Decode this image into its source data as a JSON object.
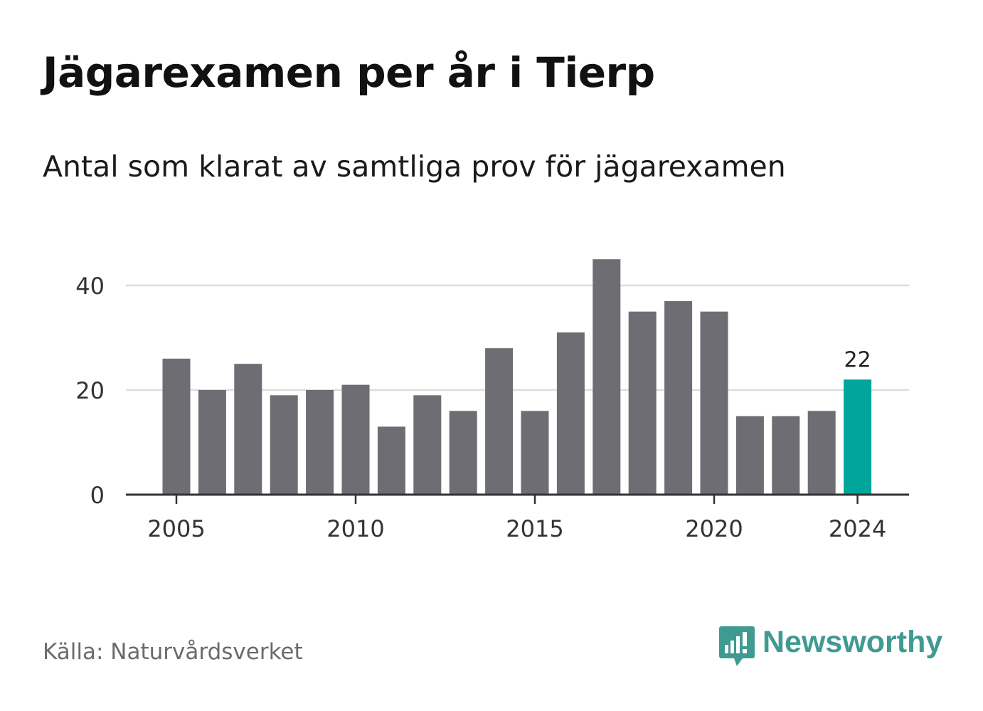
{
  "title": "Jägarexamen per år i Tierp",
  "subtitle": "Antal som klarat av samtliga prov för jägarexamen",
  "source": "Källa: Naturvårdsverket",
  "brand": {
    "name": "Newsworthy",
    "color": "#3f9a92",
    "icon": "bar-chart-speech-bubble-icon"
  },
  "colors": {
    "bar": "#6e6d73",
    "highlight": "#00a59b",
    "grid": "#dddddd",
    "axis": "#333333"
  },
  "chart_data": {
    "type": "bar",
    "x": [
      2005,
      2006,
      2007,
      2008,
      2009,
      2010,
      2011,
      2012,
      2013,
      2014,
      2015,
      2016,
      2017,
      2018,
      2019,
      2020,
      2021,
      2022,
      2023,
      2024
    ],
    "values": [
      26,
      20,
      25,
      19,
      20,
      21,
      13,
      19,
      16,
      28,
      16,
      31,
      45,
      35,
      37,
      35,
      15,
      15,
      16,
      22
    ],
    "x_ticks": [
      "2005",
      "2010",
      "2015",
      "2020",
      "2024"
    ],
    "y_ticks": [
      "0",
      "20",
      "40"
    ],
    "ylim": [
      0,
      45
    ],
    "highlight": {
      "x": 2024,
      "label": "22"
    },
    "grid": true,
    "xlabel": "",
    "ylabel": ""
  }
}
